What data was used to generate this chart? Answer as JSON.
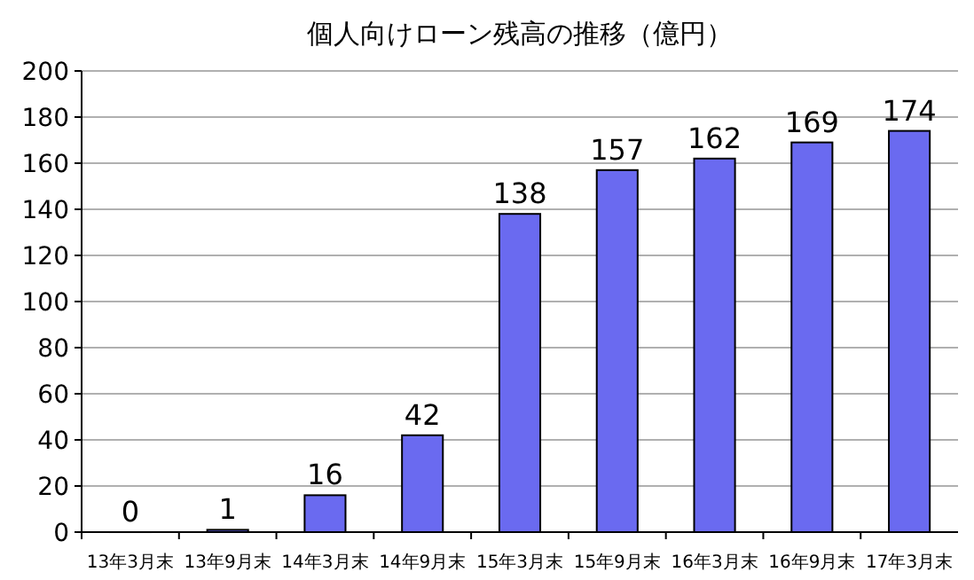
{
  "chart_data": {
    "type": "bar",
    "title": "個人向けローン残高の推移（億円）",
    "categories": [
      "13年3月末",
      "13年9月末",
      "14年3月末",
      "14年9月末",
      "15年3月末",
      "15年9月末",
      "16年3月末",
      "16年9月末",
      "17年3月末"
    ],
    "values": [
      0,
      1,
      16,
      42,
      138,
      157,
      162,
      169,
      174
    ],
    "color": "#6a6af0",
    "ylim": [
      0,
      200
    ],
    "yticks": [
      0,
      20,
      40,
      60,
      80,
      100,
      120,
      140,
      160,
      180,
      200
    ],
    "grid": "y",
    "data_labels": true
  }
}
